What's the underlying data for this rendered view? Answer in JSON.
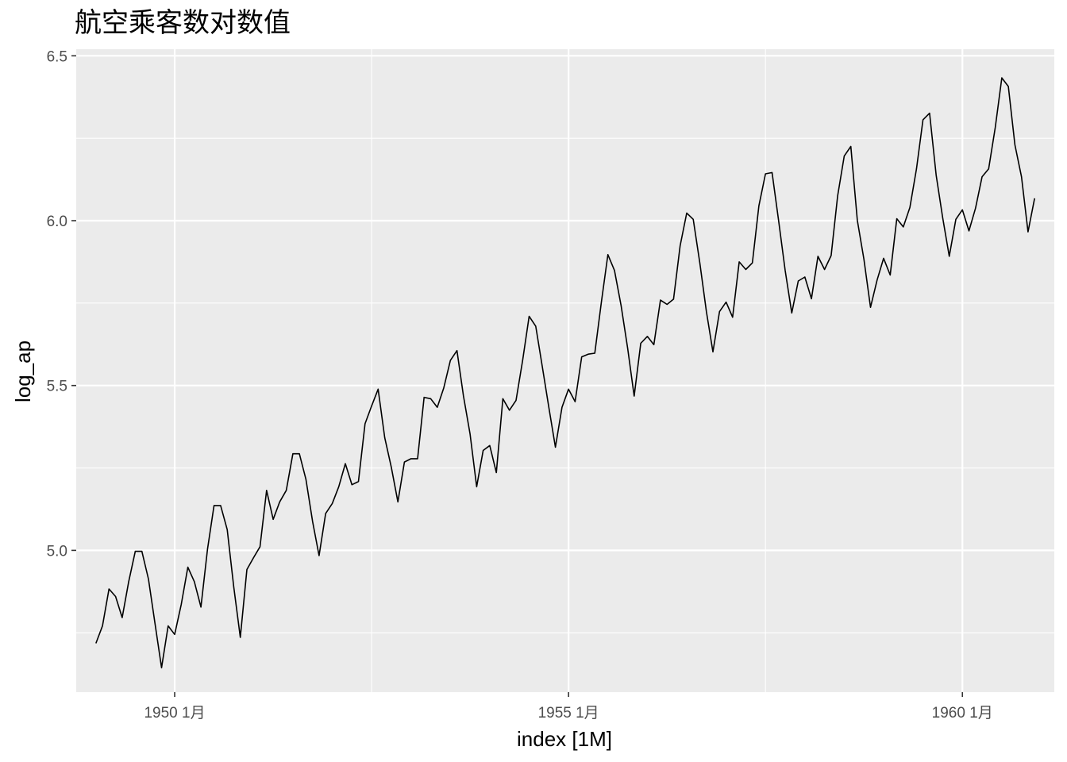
{
  "chart_data": {
    "type": "line",
    "title": "航空乘客数对数值",
    "xlabel": "index [1M]",
    "ylabel": "log_ap",
    "x_tick_labels": [
      "1950 1月",
      "1955 1月",
      "1960 1月"
    ],
    "x_ticks": [
      1950,
      1955,
      1960
    ],
    "y_tick_labels": [
      "5.0",
      "5.5",
      "6.0",
      "6.5"
    ],
    "y_ticks": [
      5.0,
      5.5,
      6.0,
      6.5
    ],
    "xlim": [
      "1948-10",
      "1961-03"
    ],
    "ylim": [
      4.57,
      6.52
    ],
    "grid": true,
    "background": "#ebebeb",
    "gridline_color": "#ffffff",
    "line_color": "#000000",
    "series": [
      {
        "start": "1949-01",
        "frequency": "monthly",
        "values": [
          4.718,
          4.771,
          4.883,
          4.86,
          4.796,
          4.905,
          4.997,
          4.997,
          4.913,
          4.779,
          4.644,
          4.771,
          4.745,
          4.836,
          4.949,
          4.905,
          4.828,
          5.004,
          5.136,
          5.136,
          5.063,
          4.89,
          4.736,
          4.942,
          4.977,
          5.011,
          5.182,
          5.094,
          5.147,
          5.182,
          5.293,
          5.293,
          5.215,
          5.088,
          4.984,
          5.112,
          5.142,
          5.193,
          5.263,
          5.199,
          5.209,
          5.384,
          5.438,
          5.489,
          5.342,
          5.252,
          5.147,
          5.268,
          5.278,
          5.278,
          5.464,
          5.46,
          5.434,
          5.493,
          5.576,
          5.606,
          5.468,
          5.353,
          5.193,
          5.303,
          5.318,
          5.236,
          5.46,
          5.425,
          5.455,
          5.576,
          5.71,
          5.68,
          5.557,
          5.434,
          5.313,
          5.434,
          5.489,
          5.451,
          5.587,
          5.595,
          5.598,
          5.753,
          5.897,
          5.849,
          5.743,
          5.613,
          5.468,
          5.628,
          5.649,
          5.624,
          5.759,
          5.746,
          5.762,
          5.924,
          6.023,
          6.004,
          5.872,
          5.724,
          5.602,
          5.724,
          5.753,
          5.707,
          5.875,
          5.852,
          5.872,
          6.045,
          6.142,
          6.146,
          6.001,
          5.849,
          5.72,
          5.817,
          5.829,
          5.763,
          5.892,
          5.852,
          5.894,
          6.075,
          6.196,
          6.225,
          6.001,
          5.883,
          5.737,
          5.82,
          5.886,
          5.835,
          6.006,
          5.981,
          6.04,
          6.157,
          6.306,
          6.326,
          6.138,
          6.009,
          5.892,
          6.004,
          6.033,
          5.969,
          6.038,
          6.133,
          6.157,
          6.282,
          6.433,
          6.407,
          6.23,
          6.133,
          5.966,
          6.068
        ]
      }
    ]
  }
}
